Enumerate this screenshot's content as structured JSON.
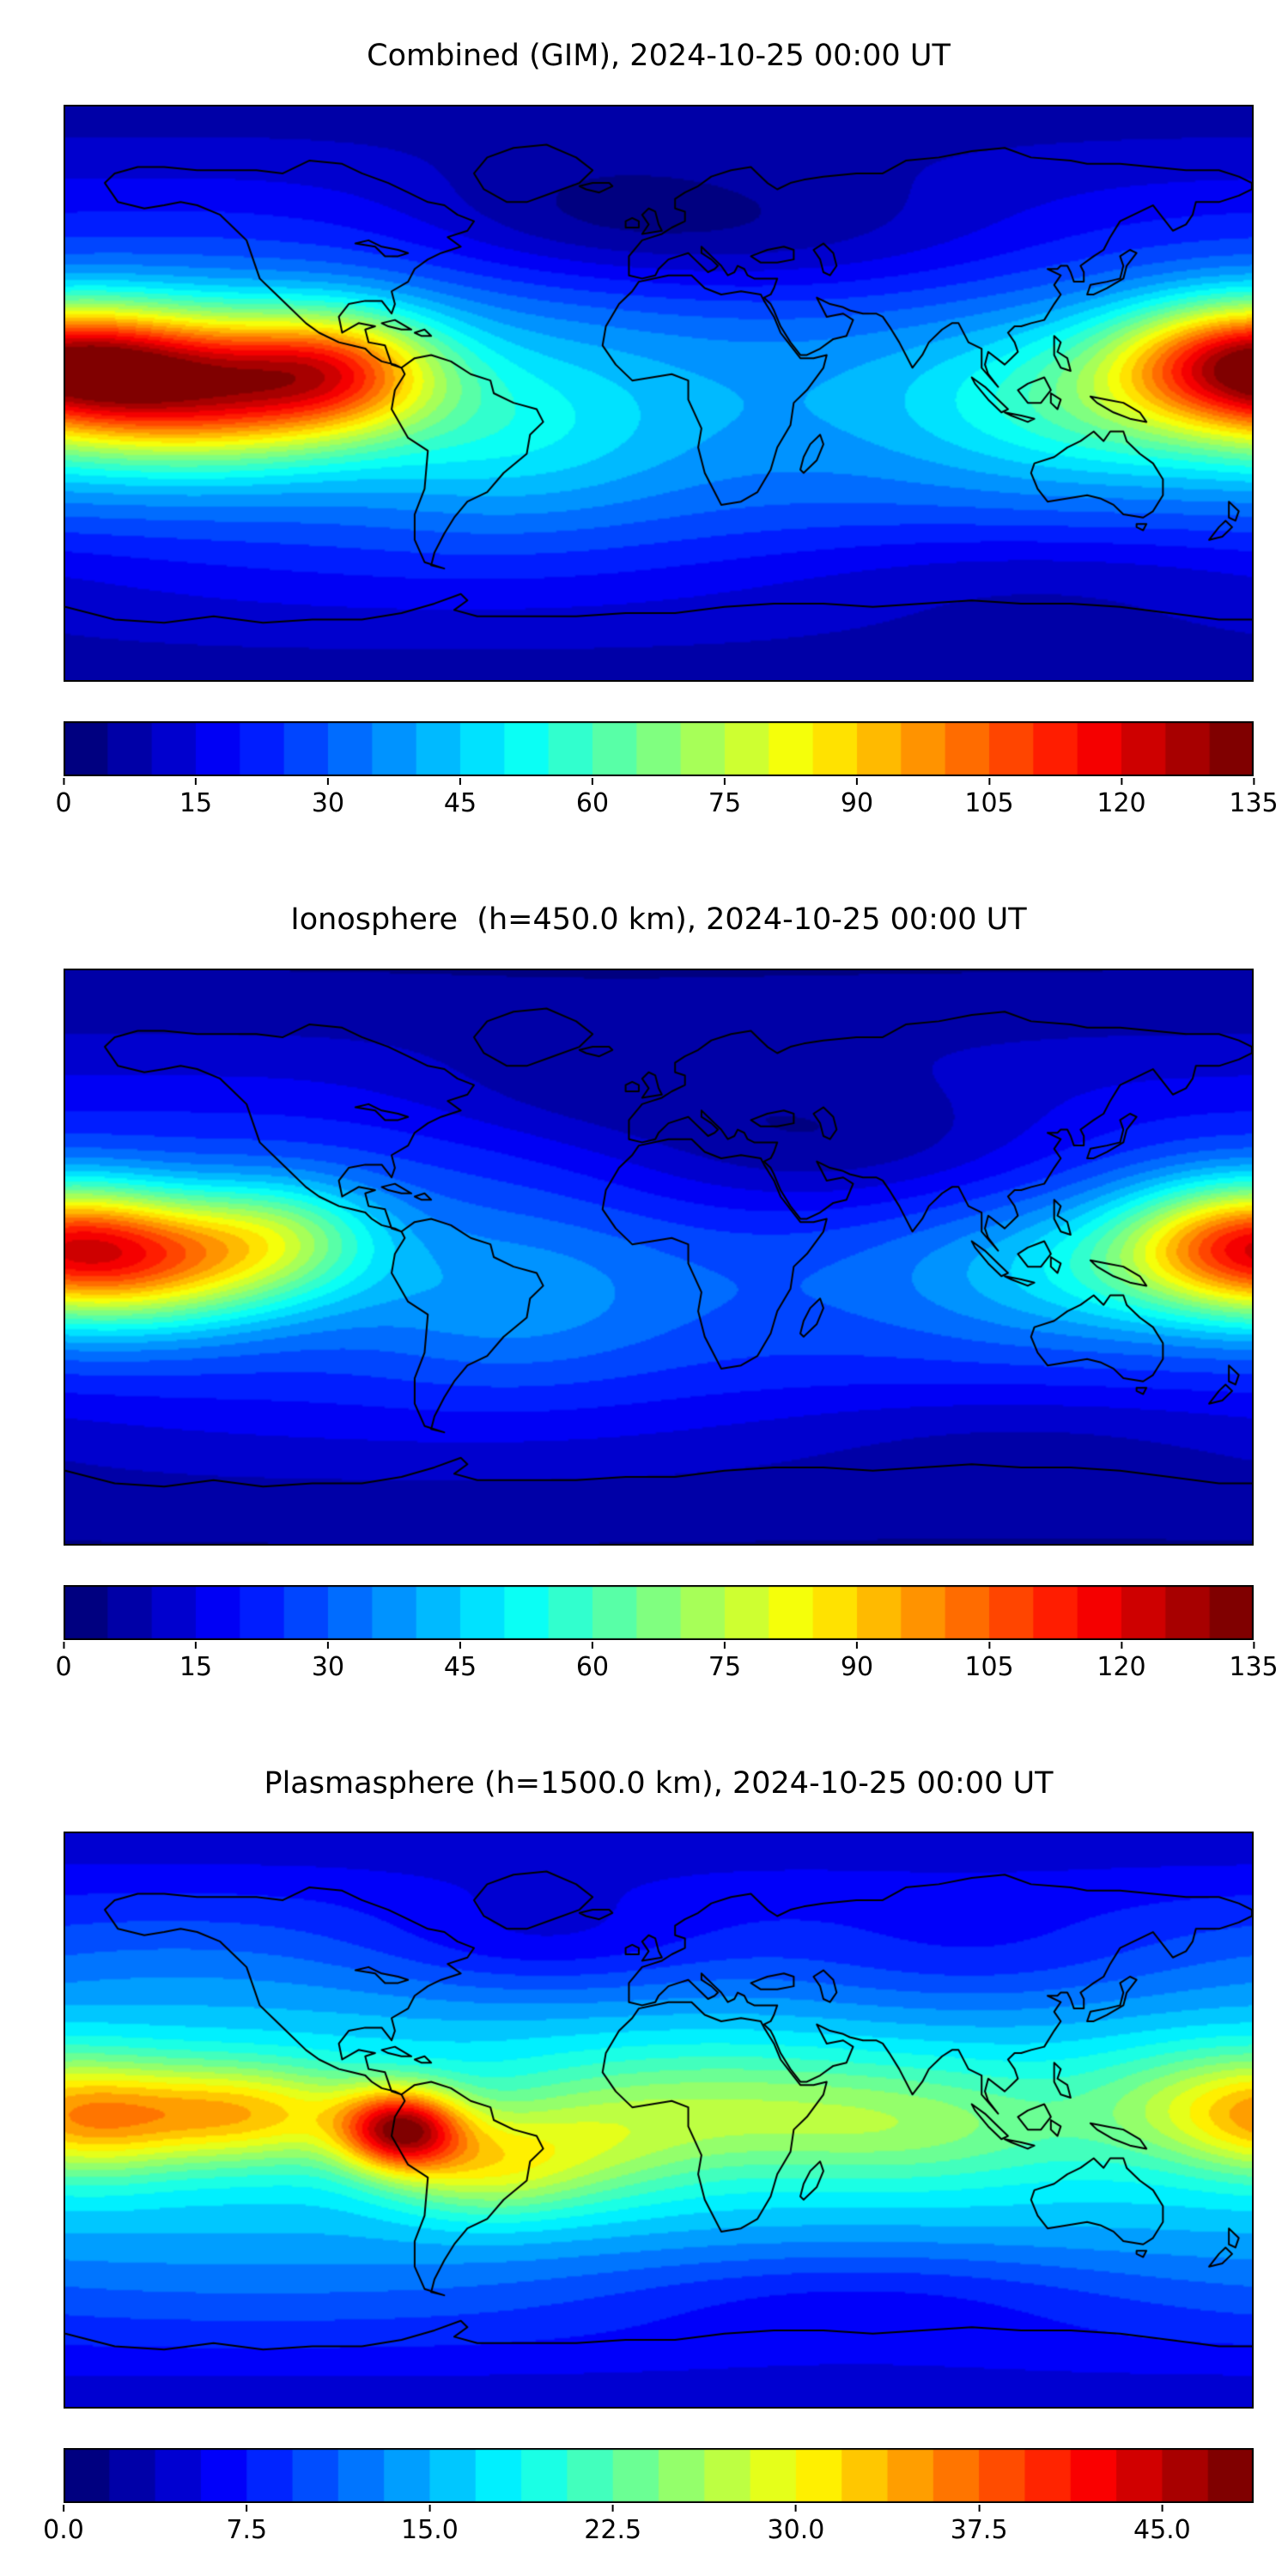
{
  "figure": {
    "background": "#ffffff",
    "coastline_color": "#000000",
    "basemap": "world-coastlines"
  },
  "chart_data": [
    {
      "type": "heatmap",
      "title": "Combined (GIM), 2024-10-25 00:00 UT",
      "projection": "equirectangular",
      "lon_range": [
        -180,
        180
      ],
      "lat_range": [
        -90,
        90
      ],
      "colormap": "jet",
      "grid": false,
      "colorbar": {
        "orientation": "horizontal",
        "vmin": 0,
        "vmax": 135,
        "levels": 27,
        "tick_values": [
          0,
          15,
          30,
          45,
          60,
          75,
          90,
          105,
          120,
          135
        ],
        "tick_labels": [
          "0",
          "15",
          "30",
          "45",
          "60",
          "75",
          "90",
          "105",
          "120",
          "135"
        ]
      },
      "field_model": {
        "base": {
          "pole": 8,
          "equator": 38,
          "power": 1.5
        },
        "blobs": [
          {
            "a": 78,
            "lon": -140,
            "lat": 2,
            "sx": 38,
            "sy": 16
          },
          {
            "a": 40,
            "lon": -97,
            "lat": 8,
            "sx": 22,
            "sy": 13
          },
          {
            "a": 55,
            "lon": 177,
            "lat": 11,
            "sx": 27,
            "sy": 13
          },
          {
            "a": 22,
            "lon": 135,
            "lat": -3,
            "sx": 40,
            "sy": 17
          },
          {
            "a": 14,
            "lon": -45,
            "lat": -12,
            "sx": 35,
            "sy": 20
          },
          {
            "a": -14,
            "lon": 40,
            "lat": 47,
            "sx": 55,
            "sy": 16
          },
          {
            "a": -10,
            "lon": -25,
            "lat": 55,
            "sx": 40,
            "sy": 14
          },
          {
            "a": -8,
            "lon": 115,
            "lat": -57,
            "sx": 65,
            "sy": 13
          }
        ]
      }
    },
    {
      "type": "heatmap",
      "title": "Ionosphere  (h=450.0 km), 2024-10-25 00:00 UT",
      "projection": "equirectangular",
      "lon_range": [
        -180,
        180
      ],
      "lat_range": [
        -90,
        90
      ],
      "colormap": "jet",
      "grid": false,
      "colorbar": {
        "orientation": "horizontal",
        "vmin": 0,
        "vmax": 135,
        "levels": 27,
        "tick_values": [
          0,
          15,
          30,
          45,
          60,
          75,
          90,
          105,
          120,
          135
        ],
        "tick_labels": [
          "0",
          "15",
          "30",
          "45",
          "60",
          "75",
          "90",
          "105",
          "120",
          "135"
        ]
      },
      "field_model": {
        "base": {
          "pole": 5,
          "equator": 30,
          "power": 1.5
        },
        "blobs": [
          {
            "a": 58,
            "lon": -158,
            "lat": -2,
            "sx": 36,
            "sy": 14
          },
          {
            "a": 25,
            "lon": -115,
            "lat": 8,
            "sx": 22,
            "sy": 12
          },
          {
            "a": 42,
            "lon": 178,
            "lat": 7,
            "sx": 26,
            "sy": 13
          },
          {
            "a": 16,
            "lon": 130,
            "lat": -5,
            "sx": 38,
            "sy": 15
          },
          {
            "a": 10,
            "lon": -45,
            "lat": -15,
            "sx": 33,
            "sy": 18
          },
          {
            "a": -12,
            "lon": 30,
            "lat": 32,
            "sx": 45,
            "sy": 18
          },
          {
            "a": -8,
            "lon": 75,
            "lat": 35,
            "sx": 40,
            "sy": 15
          },
          {
            "a": -7,
            "lon": -25,
            "lat": 52,
            "sx": 38,
            "sy": 13
          },
          {
            "a": -6,
            "lon": 110,
            "lat": -55,
            "sx": 60,
            "sy": 12
          }
        ]
      }
    },
    {
      "type": "heatmap",
      "title": "Plasmasphere (h=1500.0 km), 2024-10-25 00:00 UT",
      "projection": "equirectangular",
      "lon_range": [
        -180,
        180
      ],
      "lat_range": [
        -90,
        90
      ],
      "colormap": "jet",
      "grid": false,
      "colorbar": {
        "orientation": "horizontal",
        "vmin": 0,
        "vmax": 48.75,
        "levels": 26,
        "tick_values": [
          0,
          7.5,
          15,
          22.5,
          30,
          37.5,
          45
        ],
        "tick_labels": [
          "0.0",
          "7.5",
          "15.0",
          "22.5",
          "30.0",
          "37.5",
          "45.0"
        ]
      },
      "field_model": {
        "base": {
          "pole": 4,
          "equator": 18,
          "power": 1.2
        },
        "blobs": [
          {
            "a": 25,
            "lon": -78,
            "lat": -3,
            "sx": 13,
            "sy": 9
          },
          {
            "a": 15,
            "lon": -128,
            "lat": 2,
            "sx": 28,
            "sy": 11
          },
          {
            "a": 6,
            "lon": -172,
            "lat": -2,
            "sx": 18,
            "sy": 12
          },
          {
            "a": 10,
            "lon": 172,
            "lat": 4,
            "sx": 28,
            "sy": 13
          },
          {
            "a": 9,
            "lon": -55,
            "lat": -15,
            "sx": 20,
            "sy": 11
          },
          {
            "a": 6,
            "lon": -25,
            "lat": -10,
            "sx": 25,
            "sy": 13
          },
          {
            "a": 7,
            "lon": 15,
            "lat": 3,
            "sx": 40,
            "sy": 14
          },
          {
            "a": 6,
            "lon": 80,
            "lat": -2,
            "sx": 35,
            "sy": 13
          },
          {
            "a": -5,
            "lon": -35,
            "lat": 55,
            "sx": 40,
            "sy": 13
          },
          {
            "a": -4,
            "lon": 95,
            "lat": 50,
            "sx": 45,
            "sy": 14
          },
          {
            "a": -4,
            "lon": 60,
            "lat": -55,
            "sx": 60,
            "sy": 12
          }
        ]
      }
    }
  ]
}
